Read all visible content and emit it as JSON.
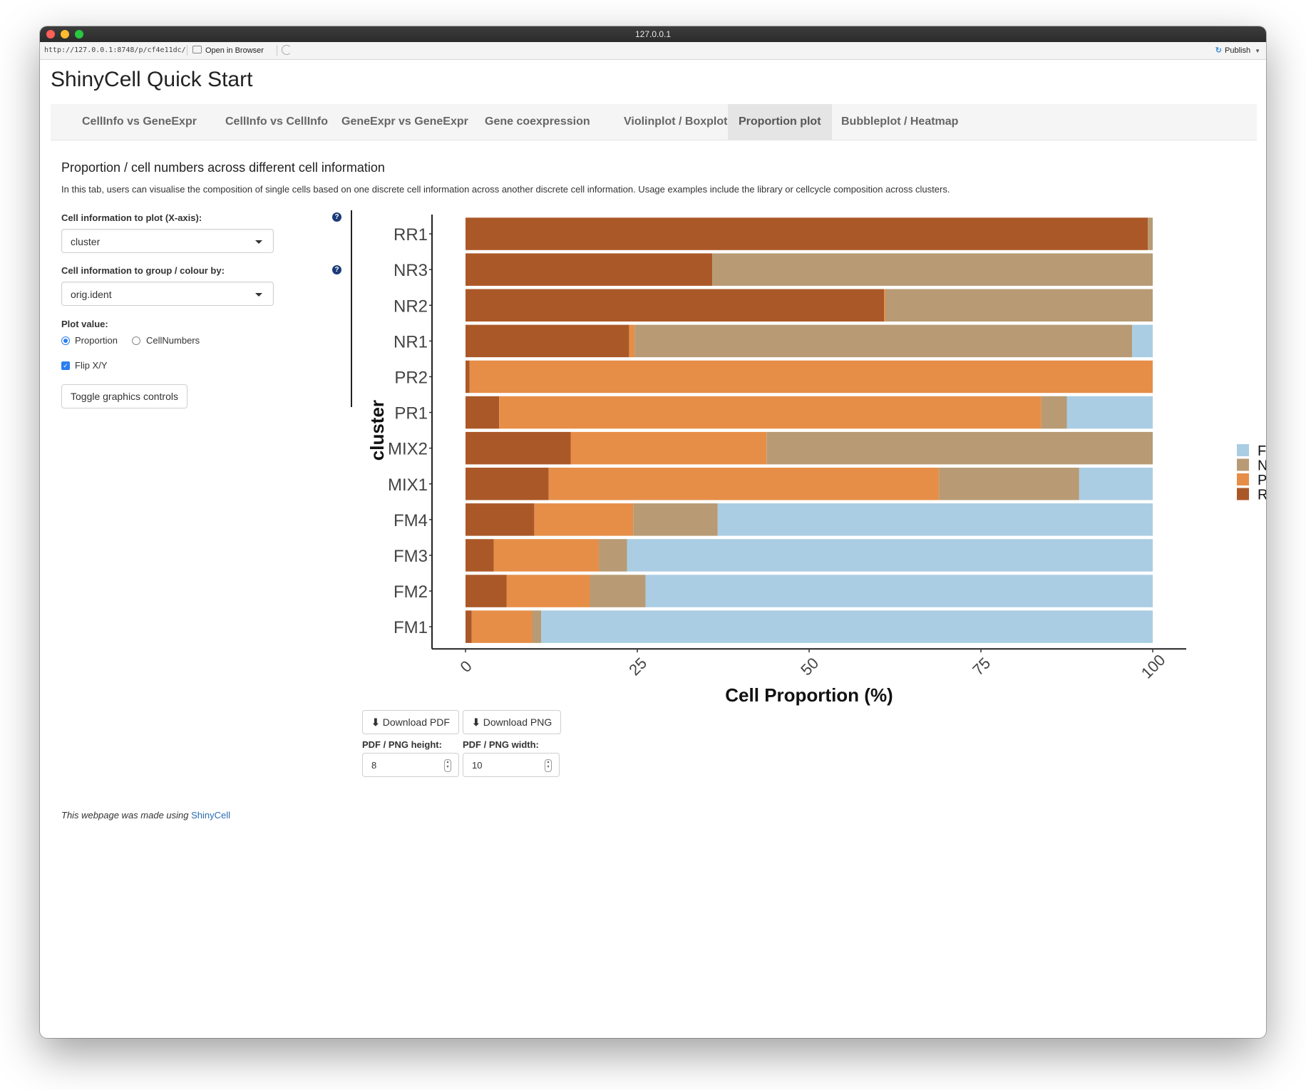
{
  "browser": {
    "window_title": "127.0.0.1",
    "url": "http://127.0.0.1:8748/p/cf4e11dc/",
    "open_in_browser": "Open in Browser",
    "publish": "Publish"
  },
  "app": {
    "title": "ShinyCell Quick Start",
    "tabs": [
      {
        "label": "CellInfo vs GeneExpr"
      },
      {
        "label": "CellInfo vs CellInfo"
      },
      {
        "label": "GeneExpr vs GeneExpr"
      },
      {
        "label": "Gene coexpression"
      },
      {
        "label": "Violinplot / Boxplot"
      },
      {
        "label": "Proportion plot"
      },
      {
        "label": "Bubbleplot / Heatmap"
      }
    ],
    "active_tab": "Proportion plot"
  },
  "main": {
    "heading": "Proportion / cell numbers across different cell information",
    "description": "In this tab, users can visualise the composition of single cells based on one discrete cell information across another discrete cell information. Usage examples include the library or cellcycle composition across clusters."
  },
  "controls": {
    "xaxis_label": "Cell information to plot (X-axis):",
    "xaxis_value": "cluster",
    "group_label": "Cell information to group / colour by:",
    "group_value": "orig.ident",
    "plot_value_label": "Plot value:",
    "plot_value_options": [
      "Proportion",
      "CellNumbers"
    ],
    "plot_value_selected": "Proportion",
    "flip_label": "Flip X/Y",
    "flip_checked": true,
    "toggle_button": "Toggle graphics controls",
    "help_glyph": "?"
  },
  "downloads": {
    "pdf_button": "Download PDF",
    "png_button": "Download PNG",
    "height_label": "PDF / PNG height:",
    "width_label": "PDF / PNG width:",
    "height_value": "8",
    "width_value": "10"
  },
  "footer": {
    "text": "This webpage was made using",
    "link": "ShinyCell"
  },
  "colors": {
    "FM": "#aacde3",
    "NR": "#b89b74",
    "PR": "#e68e48",
    "RR": "#ab5828"
  },
  "chart_data": {
    "type": "bar",
    "orientation": "horizontal-stacked",
    "xlabel": "Cell Proportion (%)",
    "ylabel": "cluster",
    "xlim": [
      0,
      100
    ],
    "xticks": [
      0,
      25,
      50,
      75,
      100
    ],
    "categories": [
      "RR1",
      "NR3",
      "NR2",
      "NR1",
      "PR2",
      "PR1",
      "MIX2",
      "MIX1",
      "FM4",
      "FM3",
      "FM2",
      "FM1"
    ],
    "stack_order": [
      "RR",
      "PR",
      "NR",
      "FM"
    ],
    "legend_order": [
      "FM",
      "NR",
      "PR",
      "RR"
    ],
    "legend_position": "right",
    "series": [
      {
        "name": "RR",
        "values": [
          99.3,
          35.9,
          60.9,
          23.8,
          0.6,
          4.9,
          15.3,
          12.1,
          10.0,
          4.1,
          6.0,
          0.9
        ]
      },
      {
        "name": "PR",
        "values": [
          0,
          0,
          0.2,
          0.8,
          99.4,
          78.9,
          28.5,
          56.8,
          14.4,
          15.3,
          12.1,
          8.8
        ]
      },
      {
        "name": "NR",
        "values": [
          0.7,
          64.1,
          38.9,
          72.4,
          0,
          3.7,
          56.2,
          20.4,
          12.3,
          4.1,
          8.1,
          1.3
        ]
      },
      {
        "name": "FM",
        "values": [
          0,
          0,
          0,
          3.0,
          0,
          12.5,
          0,
          10.7,
          63.3,
          76.5,
          73.8,
          89.0
        ]
      }
    ]
  }
}
